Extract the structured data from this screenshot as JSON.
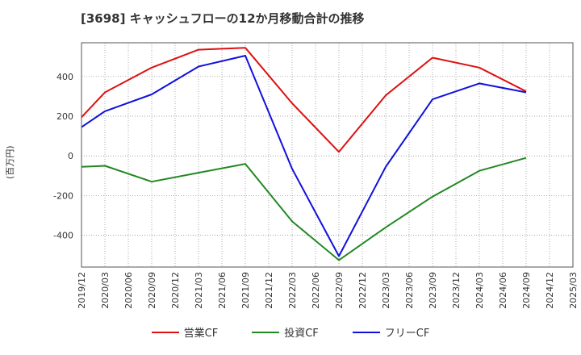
{
  "chart_data": {
    "type": "line",
    "title": "[3698]  キャッシュフローの12か月移動合計の推移",
    "ylabel": "(百万円)",
    "xlabel": "",
    "ylim": [
      -560,
      570
    ],
    "yticks": [
      -400,
      -200,
      0,
      200,
      400
    ],
    "categories": [
      "2019/12",
      "2020/03",
      "2020/06",
      "2020/09",
      "2020/12",
      "2021/03",
      "2021/06",
      "2021/09",
      "2021/12",
      "2022/03",
      "2022/06",
      "2022/09",
      "2022/12",
      "2023/03",
      "2023/06",
      "2023/09",
      "2023/12",
      "2024/03",
      "2024/06",
      "2024/09",
      "2024/12",
      "2025/03"
    ],
    "series": [
      {
        "name": "営業CF",
        "color": "#dd1111",
        "values": [
          195,
          320,
          null,
          445,
          null,
          535,
          null,
          545,
          null,
          265,
          null,
          20,
          null,
          305,
          null,
          495,
          null,
          445,
          null,
          325,
          null,
          null
        ]
      },
      {
        "name": "投資CF",
        "color": "#228822",
        "values": [
          -55,
          -50,
          null,
          -130,
          null,
          -85,
          null,
          -40,
          null,
          -330,
          null,
          -525,
          null,
          -360,
          null,
          -205,
          null,
          -75,
          null,
          -10,
          null,
          null
        ]
      },
      {
        "name": "フリーCF",
        "color": "#1111dd",
        "values": [
          145,
          225,
          null,
          310,
          null,
          450,
          null,
          505,
          null,
          -65,
          null,
          -505,
          null,
          -55,
          null,
          285,
          null,
          365,
          null,
          320,
          null,
          null
        ]
      }
    ]
  }
}
